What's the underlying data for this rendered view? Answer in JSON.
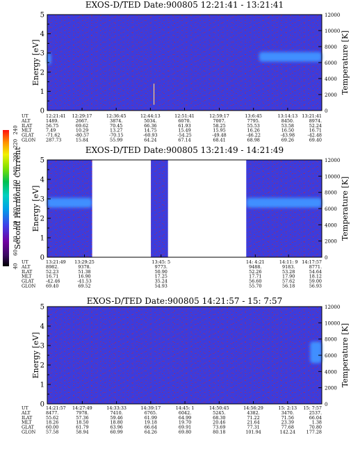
{
  "colorbar": {
    "label": "Second Harmonic Current",
    "ticks": [
      "40",
      "60",
      "80",
      "100",
      "120",
      "140",
      "160",
      "180",
      "200",
      "220",
      "240"
    ]
  },
  "left_axis_label": "Energy [eV]",
  "right_axis_label": "Temperature [K]",
  "left_ticks": [
    "0",
    "1",
    "2",
    "3",
    "4",
    "5"
  ],
  "right_ticks": [
    "0",
    "2000",
    "4000",
    "6000",
    "8000",
    "10000",
    "12000"
  ],
  "panels": [
    {
      "title": "EXOS-D/TED   Date:900805   12:21:41 - 13:21:41",
      "row_labels": [
        "UT",
        "ALT",
        "ILAT",
        "MLT",
        "GLAT",
        "GLON"
      ],
      "columns": [
        [
          "12:21:41",
          "1489.",
          "56.75",
          "7.49",
          "-71.62",
          "287.73"
        ],
        [
          "12:29:17",
          "2667.",
          "69.62",
          "10.29",
          "-80.57",
          "15.84"
        ],
        [
          "12:36:45",
          "3874.",
          "70.45",
          "13.27",
          "-70.15",
          "55.99"
        ],
        [
          "12:44:13",
          "5034.",
          "66.36",
          "14.75",
          "-60.93",
          "64.24"
        ],
        [
          "12:51:41",
          "6070.",
          "61.93",
          "15.49",
          "-54.25",
          "67.14"
        ],
        [
          "12:59:17",
          "7007.",
          "58.25",
          "15.95",
          "-49.48",
          "68.41"
        ],
        [
          "13:6:45",
          "7795.",
          "55.53",
          "16.26",
          "-46.22",
          "68.98"
        ],
        [
          "13:14:13",
          "8450.",
          "53.58",
          "16.50",
          "-43.98",
          "69.26"
        ],
        [
          "13:21:41",
          "8974.",
          "52.24",
          "16.71",
          "-42.48",
          "69.40"
        ]
      ]
    },
    {
      "title": "EXOS-D/TED   Date:900805   13:21:49 - 14:21:49",
      "row_labels": [
        "UT",
        "ALT",
        "ILAT",
        "MLT",
        "GLAT",
        "GLON"
      ],
      "columns": [
        [
          "13:21:49",
          "8982.",
          "52.23",
          "16.71",
          "-42.46",
          "69.40"
        ],
        [
          "13:29:25",
          "9378.",
          "51.38",
          "16.90",
          "-41.53",
          "69.52"
        ],
        [
          "13:45: 5",
          "9773.",
          "50.90",
          "17.25",
          "35.24",
          "54.93"
        ],
        [
          "14: 4:21",
          "9488.",
          "52.26",
          "17.71",
          "56.60",
          "55.70"
        ],
        [
          "14:11: 9",
          "9183.",
          "53.28",
          "17.90",
          "57.62",
          "56.18"
        ],
        [
          "14:17:57",
          "8771.",
          "54.64",
          "18.12",
          "59.00",
          "56.93"
        ]
      ]
    },
    {
      "title": "EXOS-D/TED   Date:900805   14:21:57 - 15: 7:57",
      "row_labels": [
        "UT",
        "ALT",
        "ILAT",
        "MLT",
        "GLAT",
        "GLON"
      ],
      "columns": [
        [
          "14:21:57",
          "8477.",
          "55.62",
          "18.26",
          "60.00",
          "57.58"
        ],
        [
          "14:27:49",
          "7978.",
          "57.36",
          "18.50",
          "61.79",
          "58.94"
        ],
        [
          "14:33:33",
          "7410.",
          "59.46",
          "18.80",
          "63.96",
          "60.99"
        ],
        [
          "14:39:17",
          "6765.",
          "61.99",
          "19.18",
          "66.64",
          "64.26"
        ],
        [
          "14:45: 1",
          "6042.",
          "64.99",
          "19.70",
          "69.91",
          "69.80"
        ],
        [
          "14:50:45",
          "5245.",
          "68.30",
          "20.46",
          "73.69",
          "80.18"
        ],
        [
          "14:56:29",
          "4382.",
          "71.22",
          "21.64",
          "77.31",
          "101.94"
        ],
        [
          "15: 2:13",
          "3470.",
          "71.56",
          "23.39",
          "77.68",
          "142.24"
        ],
        [
          "15: 7:57",
          "2537.",
          "66.04",
          "1.38",
          "70.80",
          "177.28"
        ]
      ]
    }
  ],
  "chart_data": [
    {
      "type": "heatmap",
      "title": "EXOS-D/TED   Date:900805   12:21:41 - 13:21:41",
      "xlabel": "",
      "ylabel": "Energy [eV]",
      "y2label": "Temperature [K]",
      "ylim": [
        0,
        5
      ],
      "y2lim": [
        0,
        12000
      ],
      "categories": [
        "12:21:41",
        "12:29:17",
        "12:36:45",
        "12:44:13",
        "12:51:41",
        "12:59:17",
        "13:6:45",
        "13:14:13",
        "13:21:41"
      ],
      "background_value": 80,
      "colorbar_range": [
        40,
        240
      ],
      "features": [
        {
          "kind": "enhancement",
          "x_range": [
            "12:21:41",
            "12:22:30"
          ],
          "energy_range": [
            2.4,
            3.0
          ],
          "value": 100
        },
        {
          "kind": "enhancement",
          "x_range": [
            "13:8:00",
            "13:21:41"
          ],
          "energy_range": [
            2.55,
            3.05
          ],
          "value": 110
        },
        {
          "kind": "spike",
          "x": "12:45:00",
          "energy_range": [
            0.3,
            1.4
          ],
          "value": 170
        }
      ]
    },
    {
      "type": "heatmap",
      "title": "EXOS-D/TED   Date:900805   13:21:49 - 14:21:49",
      "xlabel": "",
      "ylabel": "Energy [eV]",
      "y2label": "Temperature [K]",
      "ylim": [
        0,
        5
      ],
      "y2lim": [
        0,
        12000
      ],
      "categories": [
        "13:21:49",
        "13:29:25",
        "13:45: 5",
        "14: 4:21",
        "14:11: 9",
        "14:17:57"
      ],
      "background_value": 80,
      "colorbar_range": [
        40,
        240
      ],
      "data_gaps": [
        [
          "13:31:00",
          "13:43:00"
        ],
        [
          "13:46:30",
          "14: 2:30"
        ]
      ],
      "features": [
        {
          "kind": "enhancement",
          "x_range": [
            "13:21:49",
            "13:31:00"
          ],
          "energy_range": [
            2.55,
            3.05
          ],
          "value": 110
        },
        {
          "kind": "enhancement",
          "x_range": [
            "14: 2:30",
            "14:21:49"
          ],
          "energy_range": [
            2.55,
            3.05
          ],
          "value": 110
        }
      ]
    },
    {
      "type": "heatmap",
      "title": "EXOS-D/TED   Date:900805   14:21:57 - 15: 7:57",
      "xlabel": "",
      "ylabel": "Energy [eV]",
      "y2label": "Temperature [K]",
      "ylim": [
        0,
        5
      ],
      "y2lim": [
        0,
        12000
      ],
      "categories": [
        "14:21:57",
        "14:27:49",
        "14:33:33",
        "14:39:17",
        "14:45: 1",
        "14:50:45",
        "14:56:29",
        "15: 2:13",
        "15: 7:57"
      ],
      "background_value": 80,
      "colorbar_range": [
        40,
        240
      ],
      "features": [
        {
          "kind": "enhancement",
          "x_range": [
            "15: 6:00",
            "15: 7:57"
          ],
          "energy_range": [
            2.1,
            3.2
          ],
          "value": 130
        }
      ]
    }
  ],
  "colors": {
    "background_fill": "#3c3cdc",
    "enhancement_fill": "#3f8fff",
    "speckle": "#c0283a",
    "colorbar": [
      "#000000",
      "#3a0a60",
      "#7000a0",
      "#4040e8",
      "#00a0e8",
      "#00d0c0",
      "#00c050",
      "#80e000",
      "#f0f000",
      "#ff9000",
      "#ff1010"
    ]
  }
}
